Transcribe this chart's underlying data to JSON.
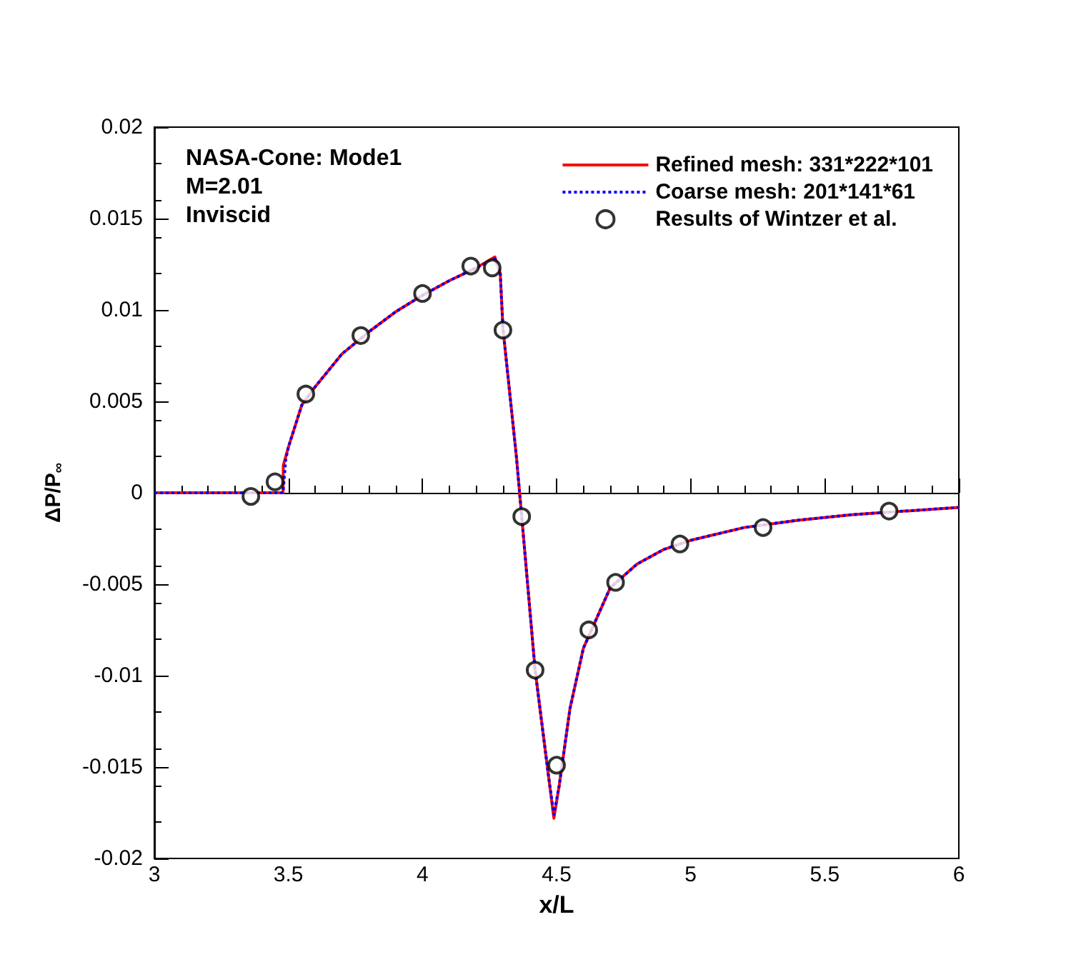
{
  "chart_data": {
    "type": "line",
    "xlabel": "x/L",
    "ylabel": "ΔP/P$_{∞}$",
    "xlim": [
      3,
      6
    ],
    "xticks": [
      3,
      3.5,
      4,
      4.5,
      5,
      5.5,
      6
    ],
    "ylim": [
      -0.02,
      0.02
    ],
    "yticks": [
      -0.02,
      -0.015,
      -0.01,
      -0.005,
      0,
      0.005,
      0.01,
      0.015,
      0.02
    ],
    "legend": "top right",
    "annotations": [
      "NASA-Cone: Mode1",
      "M=2.01",
      "Inviscid"
    ],
    "series": [
      {
        "name": "Refined mesh: 331*222*101",
        "color": "#ff0000",
        "marker": "none",
        "line_style": "solid",
        "x": [
          3,
          3.48,
          3.481,
          3.5,
          3.55,
          3.6,
          3.7,
          3.8,
          3.9,
          4.0,
          4.1,
          4.2,
          4.27,
          4.29,
          4.3,
          4.35,
          4.37,
          4.42,
          4.47,
          4.49,
          4.51,
          4.55,
          4.6,
          4.7,
          4.8,
          4.9,
          5.0,
          5.2,
          5.4,
          5.6,
          5.8,
          6.0
        ],
        "values": [
          0,
          0,
          0.0015,
          0.0025,
          0.0048,
          0.0058,
          0.0076,
          0.0088,
          0.0099,
          0.0108,
          0.0116,
          0.0123,
          0.0129,
          0.012,
          0.009,
          0.002,
          -0.0013,
          -0.0097,
          -0.0155,
          -0.0178,
          -0.016,
          -0.0118,
          -0.0085,
          -0.0052,
          -0.0039,
          -0.0031,
          -0.0026,
          -0.0019,
          -0.0015,
          -0.0012,
          -0.001,
          -0.0008
        ]
      },
      {
        "name": "Coarse mesh: 201*141*61",
        "color": "#0000ff",
        "marker": "none",
        "line_style": "dotted",
        "x": [
          3,
          3.48,
          3.49,
          3.5,
          3.55,
          3.6,
          3.7,
          3.8,
          3.9,
          4.0,
          4.1,
          4.2,
          4.27,
          4.29,
          4.3,
          4.35,
          4.37,
          4.42,
          4.47,
          4.49,
          4.51,
          4.55,
          4.6,
          4.7,
          4.8,
          4.9,
          5.0,
          5.2,
          5.4,
          5.6,
          5.8,
          6.0
        ],
        "values": [
          0,
          0,
          0.0018,
          0.0025,
          0.0048,
          0.0058,
          0.0076,
          0.0088,
          0.0099,
          0.0108,
          0.0116,
          0.0123,
          0.0128,
          0.012,
          0.009,
          0.002,
          -0.0013,
          -0.0097,
          -0.0155,
          -0.0176,
          -0.016,
          -0.0118,
          -0.0085,
          -0.0052,
          -0.0039,
          -0.0031,
          -0.0026,
          -0.0019,
          -0.0015,
          -0.0012,
          -0.001,
          -0.0008
        ]
      },
      {
        "name": "Results of Wintzer et al.",
        "color": "#000000",
        "type": "scatter",
        "marker": "circle",
        "x": [
          3.36,
          3.45,
          3.565,
          3.77,
          4.0,
          4.18,
          4.26,
          4.3,
          4.37,
          4.42,
          4.5,
          4.62,
          4.72,
          4.96,
          5.27,
          5.74
        ],
        "values": [
          -0.0002,
          0.0006,
          0.0054,
          0.0086,
          0.0109,
          0.0124,
          0.0123,
          0.0089,
          -0.0013,
          -0.0097,
          -0.0149,
          -0.0075,
          -0.0049,
          -0.0028,
          -0.0019,
          -0.001
        ]
      }
    ]
  }
}
